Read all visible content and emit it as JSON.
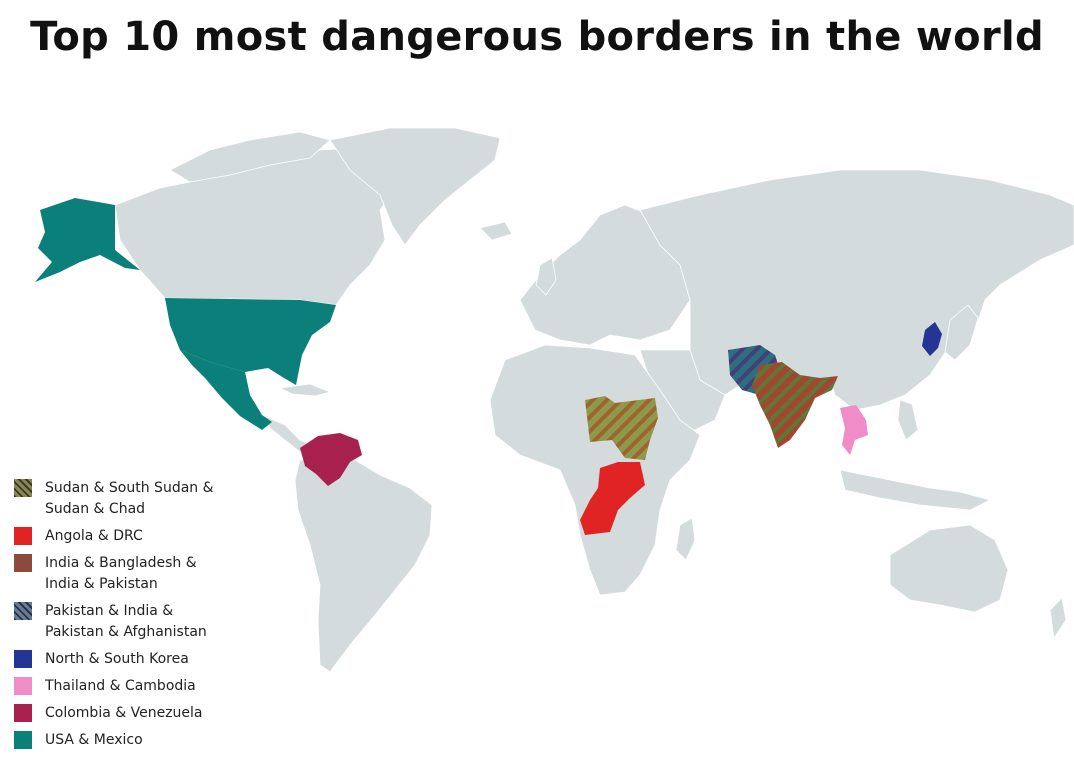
{
  "title": "Top 10 most dangerous borders in the world",
  "map": {
    "land_color": "#d4dbdc",
    "border_color": "#ffffff"
  },
  "legend": [
    {
      "key": "sudan",
      "lines": [
        "Sudan & South Sudan &",
        "Sudan & Chad"
      ],
      "color": "#8a8850",
      "accent": "#a68b3c",
      "pattern": "hatch"
    },
    {
      "key": "angola",
      "lines": [
        "Angola & DRC"
      ],
      "color": "#e02424",
      "pattern": "solid"
    },
    {
      "key": "india",
      "lines": [
        "India & Bangladesh &",
        "India & Pakistan"
      ],
      "color": "#8b4a3c",
      "accent": "#c85a3a",
      "pattern": "hatch-map"
    },
    {
      "key": "pakistan",
      "lines": [
        "Pakistan & India &",
        "Pakistan & Afghanistan"
      ],
      "color": "#3c5070",
      "accent": "#6a7c94",
      "pattern": "hatch"
    },
    {
      "key": "korea",
      "lines": [
        "North & South Korea"
      ],
      "color": "#253594",
      "pattern": "solid"
    },
    {
      "key": "thailand",
      "lines": [
        "Thailand & Cambodia"
      ],
      "color": "#f08cc8",
      "pattern": "solid"
    },
    {
      "key": "colombia",
      "lines": [
        "Colombia & Venezuela"
      ],
      "color": "#a8204e",
      "pattern": "solid"
    },
    {
      "key": "usa",
      "lines": [
        "USA & Mexico"
      ],
      "color": "#0b7f7a",
      "pattern": "solid"
    }
  ]
}
